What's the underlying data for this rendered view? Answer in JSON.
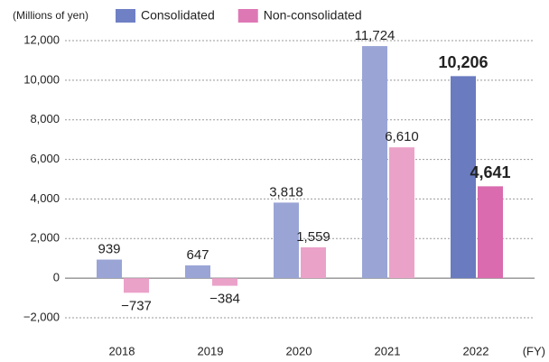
{
  "chart_data": {
    "type": "bar",
    "unit_label": "(Millions of yen)",
    "x_label": "(FY)",
    "categories": [
      "2018",
      "2019",
      "2020",
      "2021",
      "2022"
    ],
    "series": [
      {
        "name": "Consolidated",
        "color": "#6f80c4",
        "values": [
          939,
          647,
          3818,
          11724,
          10206
        ],
        "value_labels": [
          "939",
          "647",
          "3,818",
          "11,724",
          "10,206"
        ],
        "point_colors": [
          "#9aa5d6",
          "#9aa5d6",
          "#9aa5d6",
          "#9aa5d6",
          "#6a7bc0"
        ]
      },
      {
        "name": "Non-consolidated",
        "color": "#de78b5",
        "values": [
          -737,
          -384,
          1559,
          6610,
          4641
        ],
        "value_labels": [
          "−737",
          "−384",
          "1,559",
          "6,610",
          "4,641"
        ],
        "point_colors": [
          "#eba2c9",
          "#eba2c9",
          "#eba2c9",
          "#eba2c9",
          "#d96bae"
        ]
      }
    ],
    "highlight_index": 4,
    "ylim": [
      -2000,
      12000
    ],
    "yticks": [
      {
        "value": -2000,
        "label": "−2,000"
      },
      0,
      {
        "value": 2000,
        "label": "2,000"
      },
      {
        "value": 4000,
        "label": "4,000"
      },
      {
        "value": 6000,
        "label": "6,000"
      },
      {
        "value": 8000,
        "label": "8,000"
      },
      {
        "value": 10000,
        "label": "10,000"
      },
      {
        "value": 12000,
        "label": "12,000"
      }
    ],
    "grid": true
  }
}
